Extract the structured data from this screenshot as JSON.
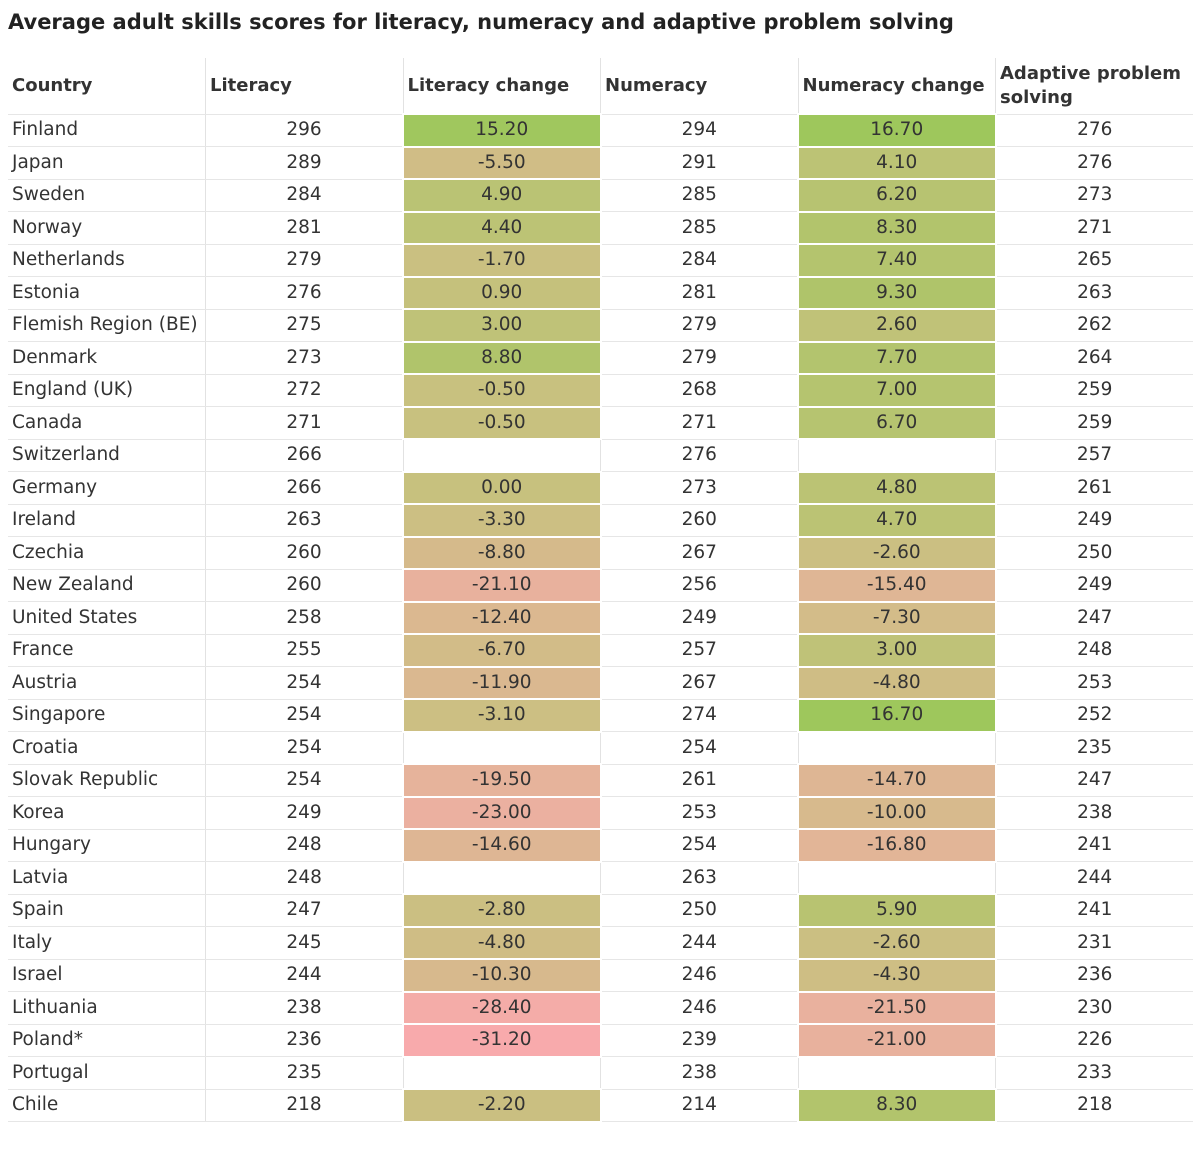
{
  "header": {
    "title": "Average adult skills scores for literacy, numeracy and adaptive problem solving"
  },
  "table": {
    "columns": [
      "Country",
      "Literacy",
      "Literacy change",
      "Numeracy",
      "Numeracy change",
      "Adaptive problem solving"
    ],
    "rows": [
      [
        "Finland",
        "296",
        "15.20",
        "294",
        "16.70",
        "276"
      ],
      [
        "Japan",
        "289",
        "-5.50",
        "291",
        "4.10",
        "276"
      ],
      [
        "Sweden",
        "284",
        "4.90",
        "285",
        "6.20",
        "273"
      ],
      [
        "Norway",
        "281",
        "4.40",
        "285",
        "8.30",
        "271"
      ],
      [
        "Netherlands",
        "279",
        "-1.70",
        "284",
        "7.40",
        "265"
      ],
      [
        "Estonia",
        "276",
        "0.90",
        "281",
        "9.30",
        "263"
      ],
      [
        "Flemish Region (BE)",
        "275",
        "3.00",
        "279",
        "2.60",
        "262"
      ],
      [
        "Denmark",
        "273",
        "8.80",
        "279",
        "7.70",
        "264"
      ],
      [
        "England (UK)",
        "272",
        "-0.50",
        "268",
        "7.00",
        "259"
      ],
      [
        "Canada",
        "271",
        "-0.50",
        "271",
        "6.70",
        "259"
      ],
      [
        "Switzerland",
        "266",
        null,
        "276",
        null,
        "257"
      ],
      [
        "Germany",
        "266",
        "0.00",
        "273",
        "4.80",
        "261"
      ],
      [
        "Ireland",
        "263",
        "-3.30",
        "260",
        "4.70",
        "249"
      ],
      [
        "Czechia",
        "260",
        "-8.80",
        "267",
        "-2.60",
        "250"
      ],
      [
        "New Zealand",
        "260",
        "-21.10",
        "256",
        "-15.40",
        "249"
      ],
      [
        "United States",
        "258",
        "-12.40",
        "249",
        "-7.30",
        "247"
      ],
      [
        "France",
        "255",
        "-6.70",
        "257",
        "3.00",
        "248"
      ],
      [
        "Austria",
        "254",
        "-11.90",
        "267",
        "-4.80",
        "253"
      ],
      [
        "Singapore",
        "254",
        "-3.10",
        "274",
        "16.70",
        "252"
      ],
      [
        "Croatia",
        "254",
        null,
        "254",
        null,
        "235"
      ],
      [
        "Slovak Republic",
        "254",
        "-19.50",
        "261",
        "-14.70",
        "247"
      ],
      [
        "Korea",
        "249",
        "-23.00",
        "253",
        "-10.00",
        "238"
      ],
      [
        "Hungary",
        "248",
        "-14.60",
        "254",
        "-16.80",
        "241"
      ],
      [
        "Latvia",
        "248",
        null,
        "263",
        null,
        "244"
      ],
      [
        "Spain",
        "247",
        "-2.80",
        "250",
        "5.90",
        "241"
      ],
      [
        "Italy",
        "245",
        "-4.80",
        "244",
        "-2.60",
        "231"
      ],
      [
        "Israel",
        "244",
        "-10.30",
        "246",
        "-4.30",
        "236"
      ],
      [
        "Lithuania",
        "238",
        "-28.40",
        "246",
        "-21.50",
        "230"
      ],
      [
        "Poland*",
        "236",
        "-31.20",
        "239",
        "-21.00",
        "226"
      ],
      [
        "Portugal",
        "235",
        null,
        "238",
        null,
        "233"
      ],
      [
        "Chile",
        "218",
        "-2.20",
        "214",
        "8.30",
        "218"
      ]
    ]
  }
}
